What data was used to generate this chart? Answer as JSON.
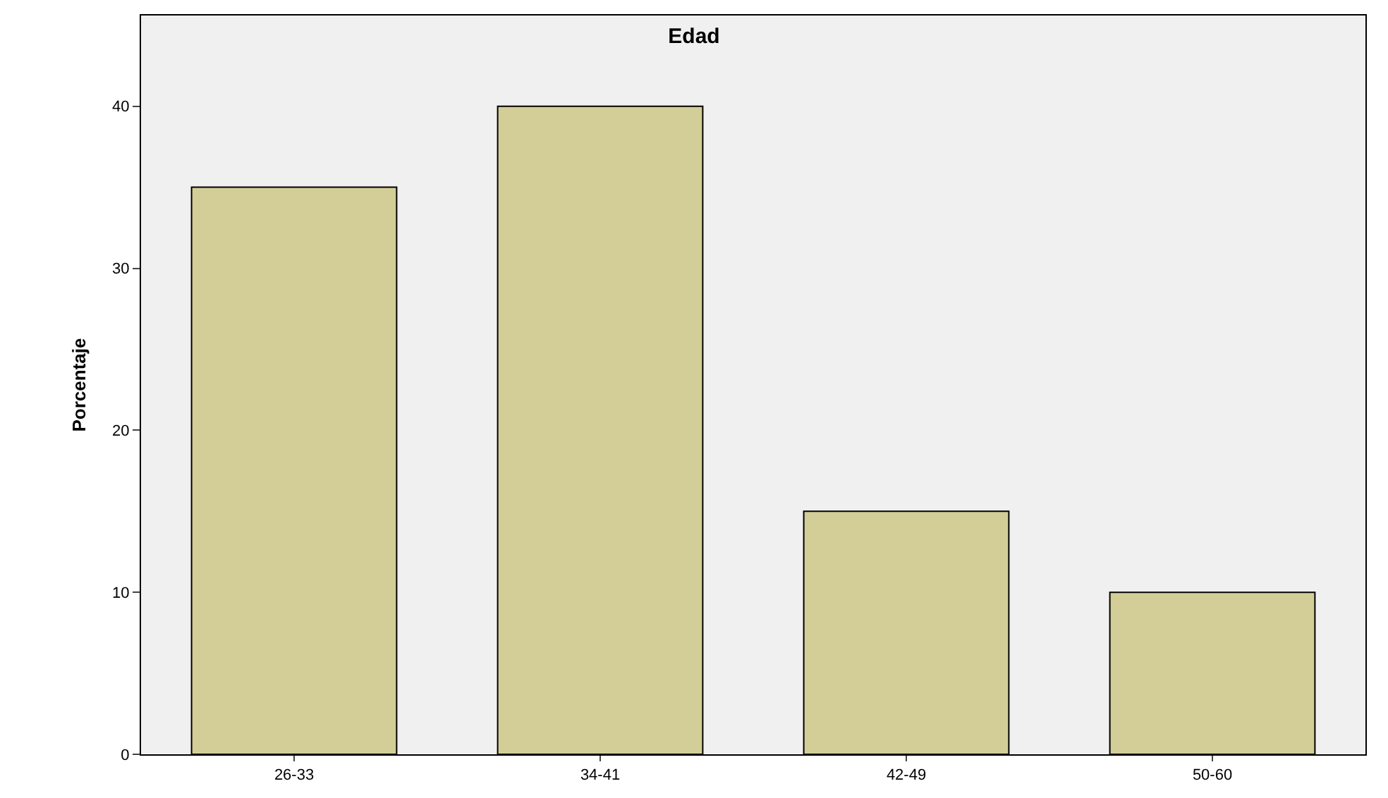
{
  "chart_data": {
    "type": "bar",
    "title": "Edad",
    "ylabel": "Porcentaje",
    "categories": [
      "26-33",
      "34-41",
      "42-49",
      "50-60"
    ],
    "values": [
      35,
      40,
      15,
      10
    ],
    "color": "#d3ce97",
    "ylim": [
      0,
      45.6
    ],
    "yticks": [
      0,
      10,
      20,
      30,
      40
    ],
    "grid": false,
    "legend": false
  }
}
